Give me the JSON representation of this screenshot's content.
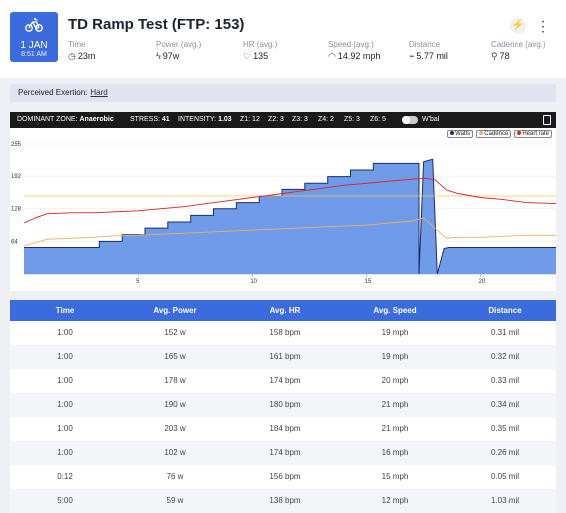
{
  "date": {
    "day": "1 JAN",
    "time": "8:51 AM"
  },
  "title": "TD Ramp Test (FTP: 153)",
  "header_icons": {
    "activity_icon": "⚡",
    "menu_icon": "⋮"
  },
  "metrics": [
    {
      "label": "Time",
      "value": "23m",
      "icon": "clock-icon"
    },
    {
      "label": "Power (avg.)",
      "value": "97w",
      "icon": "bolt-icon"
    },
    {
      "label": "HR (avg.)",
      "value": "135",
      "icon": "heart-icon"
    },
    {
      "label": "Speed (avg.)",
      "value": "14.92 mph",
      "icon": "speedometer-icon"
    },
    {
      "label": "Distance",
      "value": "5.77 mil",
      "icon": "distance-icon"
    },
    {
      "label": "Cadence (avg.)",
      "value": "78",
      "icon": "cadence-icon"
    }
  ],
  "exertion": {
    "label": "Perceived Exertion:",
    "value": "Hard"
  },
  "zonebar": {
    "dominant_label": "DOMINANT ZONE:",
    "dominant_value": "Anaerobic",
    "stress_label": "STRESS:",
    "stress_value": "41",
    "intensity_label": "INTENSITY:",
    "intensity_value": "1.03",
    "zones": [
      "Z1: 12",
      "Z2: 3",
      "Z3: 3",
      "Z4: 2",
      "Z5: 3",
      "Z6: 5"
    ],
    "wbal_label": "W'bal"
  },
  "legend": [
    "Watts",
    "Cadence",
    "Heart rate"
  ],
  "colors": {
    "accent": "#3b6bdc",
    "power_fill": "#6f9be8",
    "power_line": "#1b2c6e",
    "hr": "#e02020",
    "cadence": "#f0b060",
    "gridline": "#f2c94c"
  },
  "chart_data": {
    "type": "area",
    "x_ticks": [
      "5",
      "10",
      "15",
      "20"
    ],
    "y_ticks": [
      "255",
      "192",
      "128",
      "64"
    ],
    "xlim": [
      0,
      23.3
    ],
    "ylim": [
      0,
      255
    ],
    "series": [
      {
        "name": "Watts",
        "x": [
          0,
          1.5,
          1.5,
          3.3,
          3.3,
          4.3,
          4.3,
          5.3,
          5.3,
          6.3,
          6.3,
          7.3,
          7.3,
          8.3,
          8.3,
          9.3,
          9.3,
          10.3,
          10.3,
          11.3,
          11.3,
          12.3,
          12.3,
          13.3,
          13.3,
          14.3,
          14.3,
          15.3,
          15.3,
          16.3,
          16.3,
          17.3,
          17.3,
          17.5,
          17.9,
          18.1,
          18.4,
          18.6,
          19.5,
          20.5,
          21.5,
          22.5,
          23.3
        ],
        "values": [
          52,
          52,
          52,
          52,
          64,
          64,
          77,
          77,
          90,
          90,
          102,
          102,
          115,
          115,
          128,
          128,
          140,
          140,
          153,
          153,
          166,
          166,
          178,
          178,
          191,
          191,
          204,
          204,
          217,
          217,
          217,
          217,
          0,
          220,
          225,
          0,
          50,
          52,
          52,
          52,
          52,
          52,
          52
        ]
      },
      {
        "name": "Heart rate",
        "x": [
          0,
          0.5,
          1,
          2,
          3,
          4,
          5,
          6,
          7,
          8,
          9,
          10,
          11,
          12,
          13,
          14,
          15,
          16,
          17,
          17.5,
          18,
          18.5,
          19,
          20,
          21,
          22,
          23.3
        ],
        "values": [
          100,
          110,
          118,
          120,
          120,
          122,
          124,
          128,
          132,
          138,
          144,
          150,
          156,
          162,
          168,
          174,
          178,
          182,
          186,
          188,
          185,
          165,
          158,
          150,
          146,
          140,
          138
        ]
      },
      {
        "name": "Cadence",
        "x": [
          0,
          1,
          2,
          3,
          4,
          5,
          6,
          7,
          8,
          9,
          10,
          11,
          12,
          13,
          14,
          15,
          16,
          17,
          17.5,
          18,
          18.5,
          19,
          20,
          21,
          22,
          23.3
        ],
        "values": [
          55,
          68,
          70,
          72,
          75,
          76,
          78,
          80,
          82,
          84,
          86,
          88,
          90,
          92,
          94,
          96,
          100,
          104,
          110,
          90,
          70,
          72,
          72,
          74,
          76,
          76
        ]
      }
    ],
    "reference_line": 153
  },
  "table": {
    "columns": [
      "Time",
      "Avg. Power",
      "Avg. HR",
      "Avg. Speed",
      "Distance"
    ],
    "rows": [
      [
        "1:00",
        "152 w",
        "158 bpm",
        "19 mph",
        "0.31 mil"
      ],
      [
        "1:00",
        "165 w",
        "161 bpm",
        "19 mph",
        "0.32 mil"
      ],
      [
        "1:00",
        "178 w",
        "174 bpm",
        "20 mph",
        "0.33 mil"
      ],
      [
        "1:00",
        "190 w",
        "180 bpm",
        "21 mph",
        "0.34 mil"
      ],
      [
        "1:00",
        "203 w",
        "184 bpm",
        "21 mph",
        "0.35 mil"
      ],
      [
        "1:00",
        "102 w",
        "174 bpm",
        "16 mph",
        "0.26 mil"
      ],
      [
        "0:12",
        "76 w",
        "156 bpm",
        "15 mph",
        "0.05 mil"
      ],
      [
        "5:00",
        "59 w",
        "138 bpm",
        "12 mph",
        "1.03 mil"
      ]
    ]
  }
}
